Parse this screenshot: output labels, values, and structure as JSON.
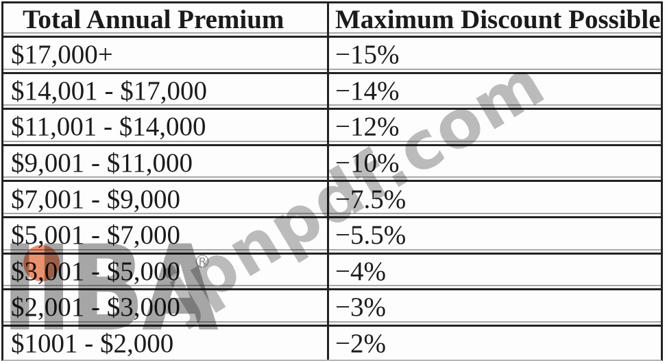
{
  "table": {
    "columns": [
      "Total Annual Premium",
      "Maximum Discount Possible"
    ],
    "rows": [
      {
        "premium": "$17,000+",
        "discount": "−15%"
      },
      {
        "premium": "$14,001 - $17,000",
        "discount": "−14%"
      },
      {
        "premium": "$11,001 - $14,000",
        "discount": "−12%"
      },
      {
        "premium": "$9,001 - $11,000",
        "discount": "−10%"
      },
      {
        "premium": "$7,001 - $9,000",
        "discount": "−7.5%"
      },
      {
        "premium": "$5,001 - $7,000",
        "discount": "−5.5%"
      },
      {
        "premium": "$3,001 - $5,000",
        "discount": "−4%"
      },
      {
        "premium": "$2,001 - $3,000",
        "discount": "−3%"
      },
      {
        "premium": "$1001 - $2,000",
        "discount": "−2%"
      }
    ]
  },
  "watermarks": {
    "diagonal_text": "jpnpdf.com",
    "logo_text": "IIBA",
    "registered_symbol": "®"
  },
  "colors": {
    "table_line_dark": "#222222",
    "faint_line_gray": "#a8a8a8",
    "watermark_text_gray": "#bdbdbd",
    "logo_gray": "#a7a7a7",
    "logo_dot_orange": "#ec9270",
    "text_color": "#1b1b1b"
  }
}
